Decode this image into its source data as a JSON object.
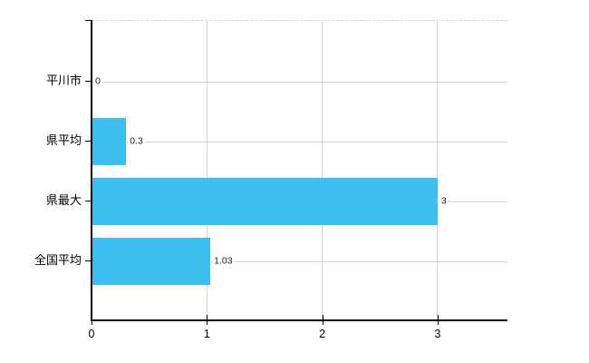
{
  "chart_data": {
    "type": "bar",
    "orientation": "horizontal",
    "title": "",
    "xlabel": "",
    "ylabel": "",
    "categories": [
      "平川市",
      "県平均",
      "県最大",
      "全国平均"
    ],
    "values": [
      0,
      0.3,
      3,
      1.03
    ],
    "value_labels": [
      "0",
      "0.3",
      "3",
      "1.03"
    ],
    "x_ticks": [
      0,
      1,
      2,
      3
    ],
    "x_tick_labels": [
      "0",
      "1",
      "2",
      "3"
    ],
    "xlim": [
      0,
      3.6
    ],
    "grid": true,
    "legend": "none",
    "colors": {
      "bar": "#3dbff0",
      "grid": "#d6d6d6",
      "frame_dashed": "#d4d4d4",
      "axis": "#000000",
      "text": "#000000",
      "value_text": "#222222",
      "background": "#ffffff"
    }
  }
}
